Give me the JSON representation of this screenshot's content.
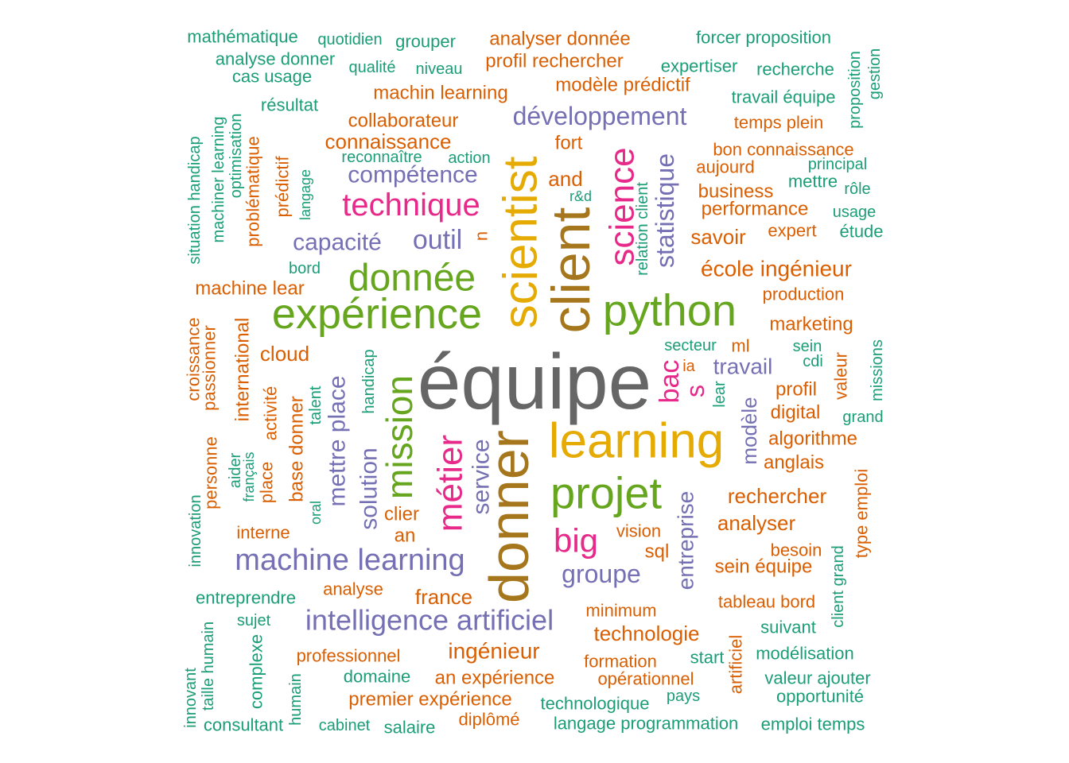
{
  "palette": {
    "teal": "#1b9e77",
    "orange": "#d95f02",
    "purple": "#7570b3",
    "pink": "#e7298a",
    "green": "#66a61e",
    "gold": "#e6ab02",
    "brown": "#a6761d",
    "gray": "#666666"
  },
  "words": [
    {
      "text": "équipe",
      "color": "gray"
    },
    {
      "text": "donner",
      "color": "brown"
    },
    {
      "text": "client",
      "color": "brown"
    },
    {
      "text": "scientist",
      "color": "gold"
    },
    {
      "text": "learning",
      "color": "gold"
    },
    {
      "text": "python",
      "color": "green"
    },
    {
      "text": "expérience",
      "color": "green"
    },
    {
      "text": "projet",
      "color": "green"
    },
    {
      "text": "donnée",
      "color": "green"
    },
    {
      "text": "mission",
      "color": "green"
    },
    {
      "text": "science",
      "color": "pink"
    },
    {
      "text": "métier",
      "color": "pink"
    },
    {
      "text": "technique",
      "color": "pink"
    },
    {
      "text": "big",
      "color": "pink"
    },
    {
      "text": "bac",
      "color": "pink"
    },
    {
      "text": "s",
      "color": "pink"
    },
    {
      "text": "machine learning",
      "color": "purple"
    },
    {
      "text": "intelligence artificiel",
      "color": "purple"
    },
    {
      "text": "développement",
      "color": "purple"
    },
    {
      "text": "outil",
      "color": "purple"
    },
    {
      "text": "compétence",
      "color": "purple"
    },
    {
      "text": "capacité",
      "color": "purple"
    },
    {
      "text": "statistique",
      "color": "purple"
    },
    {
      "text": "mettre place",
      "color": "purple"
    },
    {
      "text": "solution",
      "color": "purple"
    },
    {
      "text": "service",
      "color": "purple"
    },
    {
      "text": "groupe",
      "color": "purple"
    },
    {
      "text": "entreprise",
      "color": "purple"
    },
    {
      "text": "modèle",
      "color": "purple"
    },
    {
      "text": "travail",
      "color": "purple"
    },
    {
      "text": "école ingénieur",
      "color": "orange"
    },
    {
      "text": "connaissance",
      "color": "orange"
    },
    {
      "text": "collaborateur",
      "color": "orange"
    },
    {
      "text": "machin learning",
      "color": "orange"
    },
    {
      "text": "profil rechercher",
      "color": "orange"
    },
    {
      "text": "modèle prédictif",
      "color": "orange"
    },
    {
      "text": "analyser donnée",
      "color": "orange"
    },
    {
      "text": "fort",
      "color": "orange"
    },
    {
      "text": "and",
      "color": "orange"
    },
    {
      "text": "n",
      "color": "orange"
    },
    {
      "text": "temps plein",
      "color": "orange"
    },
    {
      "text": "bon connaissance",
      "color": "orange"
    },
    {
      "text": "aujourd",
      "color": "orange"
    },
    {
      "text": "business",
      "color": "orange"
    },
    {
      "text": "performance",
      "color": "orange"
    },
    {
      "text": "savoir",
      "color": "orange"
    },
    {
      "text": "expert",
      "color": "orange"
    },
    {
      "text": "production",
      "color": "orange"
    },
    {
      "text": "marketing",
      "color": "orange"
    },
    {
      "text": "ml",
      "color": "orange"
    },
    {
      "text": "profil",
      "color": "orange"
    },
    {
      "text": "digital",
      "color": "orange"
    },
    {
      "text": "algorithme",
      "color": "orange"
    },
    {
      "text": "anglais",
      "color": "orange"
    },
    {
      "text": "rechercher",
      "color": "orange"
    },
    {
      "text": "analyser",
      "color": "orange"
    },
    {
      "text": "besoin",
      "color": "orange"
    },
    {
      "text": "sein équipe",
      "color": "orange"
    },
    {
      "text": "tableau bord",
      "color": "orange"
    },
    {
      "text": "technologie",
      "color": "orange"
    },
    {
      "text": "minimum",
      "color": "orange"
    },
    {
      "text": "formation",
      "color": "orange"
    },
    {
      "text": "opérationnel",
      "color": "orange"
    },
    {
      "text": "ingénieur",
      "color": "orange"
    },
    {
      "text": "an expérience",
      "color": "orange"
    },
    {
      "text": "premier expérience",
      "color": "orange"
    },
    {
      "text": "diplômé",
      "color": "orange"
    },
    {
      "text": "professionnel",
      "color": "orange"
    },
    {
      "text": "france",
      "color": "orange"
    },
    {
      "text": "analyse",
      "color": "orange"
    },
    {
      "text": "vision",
      "color": "orange"
    },
    {
      "text": "sql",
      "color": "orange"
    },
    {
      "text": "clier",
      "color": "orange"
    },
    {
      "text": "an",
      "color": "orange"
    },
    {
      "text": "interne",
      "color": "orange"
    },
    {
      "text": "cloud",
      "color": "orange"
    },
    {
      "text": "machine lear",
      "color": "orange"
    },
    {
      "text": "international",
      "color": "orange"
    },
    {
      "text": "base donner",
      "color": "orange"
    },
    {
      "text": "place",
      "color": "orange"
    },
    {
      "text": "activité",
      "color": "orange"
    },
    {
      "text": "passionner",
      "color": "orange"
    },
    {
      "text": "croissance",
      "color": "orange"
    },
    {
      "text": "personne",
      "color": "orange"
    },
    {
      "text": "prédictif",
      "color": "orange"
    },
    {
      "text": "problématique",
      "color": "orange"
    },
    {
      "text": "valeur",
      "color": "orange"
    },
    {
      "text": "type emploi",
      "color": "orange"
    },
    {
      "text": "artificiel",
      "color": "orange"
    },
    {
      "text": "ia",
      "color": "orange"
    },
    {
      "text": "mathématique",
      "color": "teal"
    },
    {
      "text": "quotidien",
      "color": "teal"
    },
    {
      "text": "grouper",
      "color": "teal"
    },
    {
      "text": "forcer proposition",
      "color": "teal"
    },
    {
      "text": "analyse donner",
      "color": "teal"
    },
    {
      "text": "cas usage",
      "color": "teal"
    },
    {
      "text": "qualité",
      "color": "teal"
    },
    {
      "text": "niveau",
      "color": "teal"
    },
    {
      "text": "expertiser",
      "color": "teal"
    },
    {
      "text": "recherche",
      "color": "teal"
    },
    {
      "text": "travail équipe",
      "color": "teal"
    },
    {
      "text": "résultat",
      "color": "teal"
    },
    {
      "text": "reconnaître",
      "color": "teal"
    },
    {
      "text": "action",
      "color": "teal"
    },
    {
      "text": "principal",
      "color": "teal"
    },
    {
      "text": "mettre",
      "color": "teal"
    },
    {
      "text": "rôle",
      "color": "teal"
    },
    {
      "text": "usage",
      "color": "teal"
    },
    {
      "text": "étude",
      "color": "teal"
    },
    {
      "text": "r&d",
      "color": "teal"
    },
    {
      "text": "bord",
      "color": "teal"
    },
    {
      "text": "secteur",
      "color": "teal"
    },
    {
      "text": "sein",
      "color": "teal"
    },
    {
      "text": "cdi",
      "color": "teal"
    },
    {
      "text": "grand",
      "color": "teal"
    },
    {
      "text": "lear",
      "color": "teal"
    },
    {
      "text": "modélisation",
      "color": "teal"
    },
    {
      "text": "suivant",
      "color": "teal"
    },
    {
      "text": "start",
      "color": "teal"
    },
    {
      "text": "valeur ajouter",
      "color": "teal"
    },
    {
      "text": "opportunité",
      "color": "teal"
    },
    {
      "text": "pays",
      "color": "teal"
    },
    {
      "text": "emploi temps",
      "color": "teal"
    },
    {
      "text": "langage programmation",
      "color": "teal"
    },
    {
      "text": "technologique",
      "color": "teal"
    },
    {
      "text": "domaine",
      "color": "teal"
    },
    {
      "text": "salaire",
      "color": "teal"
    },
    {
      "text": "cabinet",
      "color": "teal"
    },
    {
      "text": "consultant",
      "color": "teal"
    },
    {
      "text": "entreprendre",
      "color": "teal"
    },
    {
      "text": "sujet",
      "color": "teal"
    },
    {
      "text": "complexe",
      "color": "teal"
    },
    {
      "text": "humain",
      "color": "teal"
    },
    {
      "text": "taille humain",
      "color": "teal"
    },
    {
      "text": "innovant",
      "color": "teal"
    },
    {
      "text": "innovation",
      "color": "teal"
    },
    {
      "text": "aider",
      "color": "teal"
    },
    {
      "text": "français",
      "color": "teal"
    },
    {
      "text": "oral",
      "color": "teal"
    },
    {
      "text": "talent",
      "color": "teal"
    },
    {
      "text": "handicap",
      "color": "teal"
    },
    {
      "text": "situation handicap",
      "color": "teal"
    },
    {
      "text": "machiner learning",
      "color": "teal"
    },
    {
      "text": "optimisation",
      "color": "teal"
    },
    {
      "text": "langage",
      "color": "teal"
    },
    {
      "text": "relation client",
      "color": "teal"
    },
    {
      "text": "proposition",
      "color": "teal"
    },
    {
      "text": "gestion",
      "color": "teal"
    },
    {
      "text": "missions",
      "color": "teal"
    },
    {
      "text": "client grand",
      "color": "teal"
    }
  ]
}
